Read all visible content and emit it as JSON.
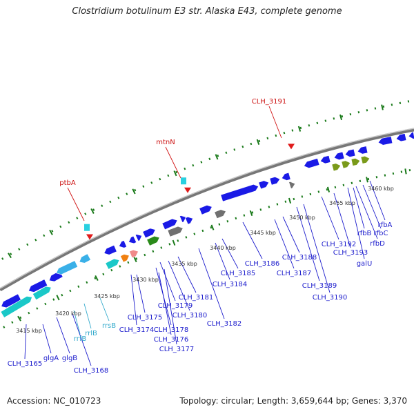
{
  "title": "Clostridium botulinum E3 str. Alaska E43, complete genome",
  "footer": {
    "accession": "Accession: NC_010723",
    "summary": "Topology: circular; Length: 3,659,644 bp; Genes: 3,370"
  },
  "colors": {
    "gene": "#1a1ae6",
    "gene_label": "#1a1acc",
    "rna": "#1ab3d9",
    "rna_label": "#33aacc",
    "pseudo": "#d01010",
    "pseudo_label": "#cc1010",
    "tick": "#1a7a1a",
    "backbone": "#777777"
  },
  "kbp_labels": [
    "3415 kbp",
    "3420 kbp",
    "3425 kbp",
    "3430 kbp",
    "3435 kbp",
    "3440 kbp",
    "3445 kbp",
    "3450 kbp",
    "3455 kbp",
    "3460 kbp"
  ],
  "gene_labels": [
    "CLH_3165",
    "glgA",
    "glgB",
    "CLH_3168",
    "rrfB",
    "rrlB",
    "rrsB",
    "CLH_3174",
    "CLH_3175",
    "CLH_3176",
    "CLH_3177",
    "CLH_3178",
    "CLH_3179",
    "CLH_3180",
    "CLH_3181",
    "CLH_3182",
    "CLH_3184",
    "CLH_3185",
    "CLH_3186",
    "CLH_3187",
    "CLH_3188",
    "CLH_3189",
    "CLH_3190",
    "CLH_3192",
    "CLH_3193",
    "galU",
    "rfbD",
    "rfbB",
    "rfbC",
    "rfbA"
  ],
  "pseudo_labels": [
    "ptbA",
    "mtnN",
    "CLH_3191"
  ]
}
